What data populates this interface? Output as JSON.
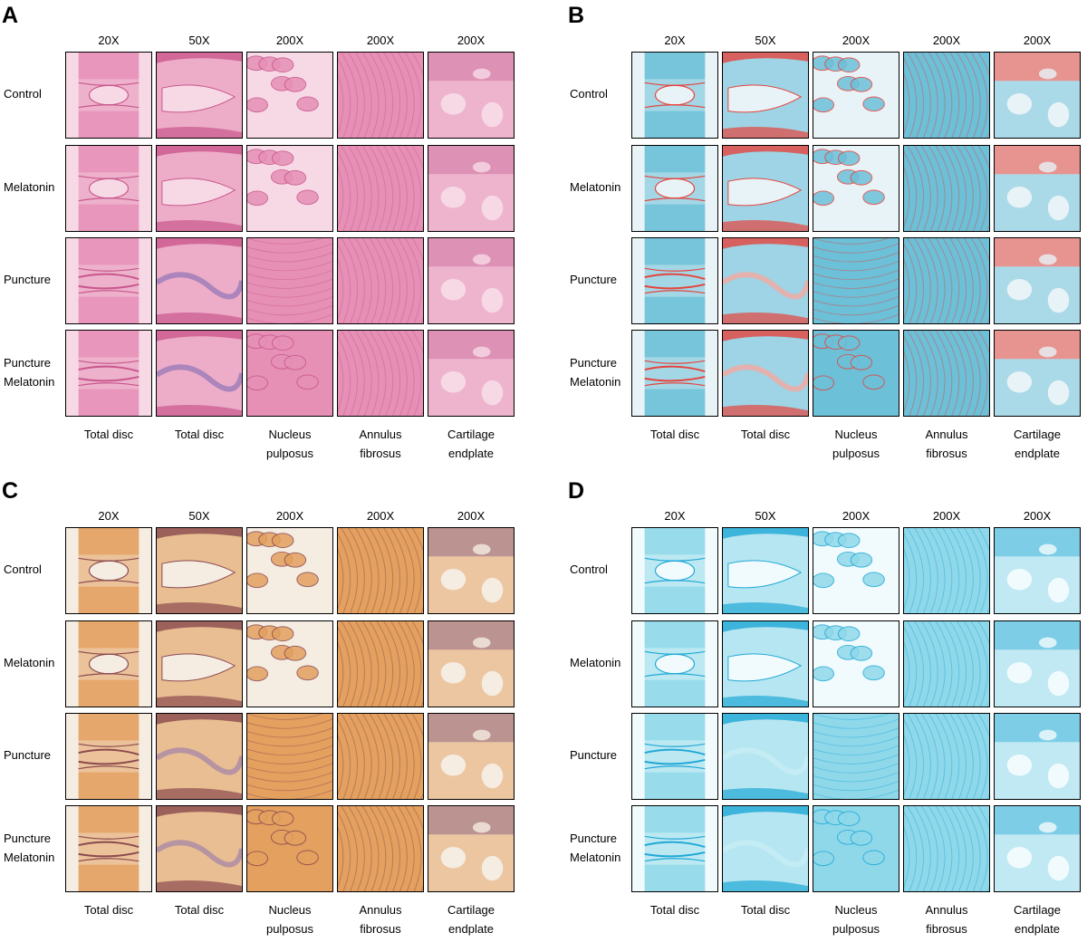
{
  "figure": {
    "panels": [
      {
        "letter": "A",
        "stain": "he",
        "colors": {
          "bg": "#f7d9e6",
          "tissue": "#e690b6",
          "dark": "#c9568c",
          "accent": "#9a7ab8"
        }
      },
      {
        "letter": "B",
        "stain": "safranin",
        "colors": {
          "bg": "#e8f3f7",
          "tissue": "#6cc0d8",
          "dark": "#e5443d",
          "accent": "#f4a7a0"
        }
      },
      {
        "letter": "C",
        "stain": "trichrome",
        "colors": {
          "bg": "#f5ece2",
          "tissue": "#e3a05f",
          "dark": "#8a4a4e",
          "accent": "#a98aa6"
        }
      },
      {
        "letter": "D",
        "stain": "alcian",
        "colors": {
          "bg": "#f1fbfd",
          "tissue": "#8fd8ea",
          "dark": "#1fa8d6",
          "accent": "#c8eef6"
        }
      }
    ],
    "magnifications": [
      "20X",
      "50X",
      "200X",
      "200X",
      "200X"
    ],
    "rows": [
      {
        "lines": [
          "Control",
          ""
        ]
      },
      {
        "lines": [
          "Melatonin",
          ""
        ]
      },
      {
        "lines": [
          "Puncture",
          ""
        ]
      },
      {
        "lines": [
          "Puncture",
          "Melatonin"
        ]
      }
    ],
    "columns": [
      {
        "lines": [
          "Total disc",
          ""
        ]
      },
      {
        "lines": [
          "Total disc",
          ""
        ]
      },
      {
        "lines": [
          "Nucleus",
          "pulposus"
        ]
      },
      {
        "lines": [
          "Annulus",
          "fibrosus"
        ]
      },
      {
        "lines": [
          "Cartilage",
          "endplate"
        ]
      }
    ]
  }
}
